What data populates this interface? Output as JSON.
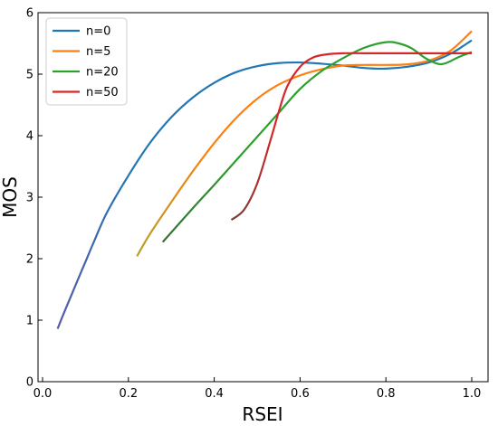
{
  "chart_data": {
    "type": "line",
    "xlabel": "RSEI",
    "ylabel": "MOS",
    "xlim": [
      0.0,
      1.0
    ],
    "ylim": [
      0,
      6
    ],
    "x_ticks": [
      "0.0",
      "0.2",
      "0.4",
      "0.6",
      "0.8",
      "1.0"
    ],
    "y_ticks": [
      "0",
      "1",
      "2",
      "3",
      "4",
      "5",
      "6"
    ],
    "grid": false,
    "legend_position": "top-left",
    "series": [
      {
        "name": "n=0",
        "color": "#1f77b4",
        "start_color": "#5a5aa8",
        "points": [
          [
            0.035,
            0.86
          ],
          [
            0.05,
            1.12
          ],
          [
            0.08,
            1.62
          ],
          [
            0.1,
            1.95
          ],
          [
            0.12,
            2.28
          ],
          [
            0.15,
            2.75
          ],
          [
            0.2,
            3.35
          ],
          [
            0.25,
            3.88
          ],
          [
            0.3,
            4.3
          ],
          [
            0.35,
            4.62
          ],
          [
            0.4,
            4.86
          ],
          [
            0.45,
            5.03
          ],
          [
            0.5,
            5.13
          ],
          [
            0.55,
            5.18
          ],
          [
            0.6,
            5.19
          ],
          [
            0.65,
            5.17
          ],
          [
            0.7,
            5.14
          ],
          [
            0.75,
            5.1
          ],
          [
            0.8,
            5.09
          ],
          [
            0.85,
            5.12
          ],
          [
            0.9,
            5.19
          ],
          [
            0.95,
            5.33
          ],
          [
            1.0,
            5.55
          ]
        ]
      },
      {
        "name": "n=5",
        "color": "#ff7f0e",
        "start_color": "#b3a12a",
        "points": [
          [
            0.22,
            2.04
          ],
          [
            0.25,
            2.4
          ],
          [
            0.3,
            2.92
          ],
          [
            0.35,
            3.42
          ],
          [
            0.4,
            3.88
          ],
          [
            0.45,
            4.28
          ],
          [
            0.5,
            4.6
          ],
          [
            0.55,
            4.83
          ],
          [
            0.6,
            4.98
          ],
          [
            0.65,
            5.08
          ],
          [
            0.7,
            5.14
          ],
          [
            0.75,
            5.15
          ],
          [
            0.8,
            5.15
          ],
          [
            0.85,
            5.16
          ],
          [
            0.9,
            5.22
          ],
          [
            0.95,
            5.38
          ],
          [
            1.0,
            5.7
          ]
        ]
      },
      {
        "name": "n=20",
        "color": "#2ca02c",
        "start_color": "#3a6e3a",
        "points": [
          [
            0.28,
            2.27
          ],
          [
            0.35,
            2.82
          ],
          [
            0.4,
            3.2
          ],
          [
            0.45,
            3.59
          ],
          [
            0.5,
            3.98
          ],
          [
            0.55,
            4.37
          ],
          [
            0.6,
            4.76
          ],
          [
            0.65,
            5.05
          ],
          [
            0.7,
            5.26
          ],
          [
            0.75,
            5.43
          ],
          [
            0.8,
            5.52
          ],
          [
            0.83,
            5.5
          ],
          [
            0.86,
            5.42
          ],
          [
            0.89,
            5.27
          ],
          [
            0.92,
            5.17
          ],
          [
            0.94,
            5.18
          ],
          [
            0.97,
            5.28
          ],
          [
            1.0,
            5.36
          ]
        ]
      },
      {
        "name": "n=50",
        "color": "#d62728",
        "start_color": "#7a3d3d",
        "points": [
          [
            0.44,
            2.63
          ],
          [
            0.47,
            2.8
          ],
          [
            0.5,
            3.22
          ],
          [
            0.53,
            3.9
          ],
          [
            0.55,
            4.38
          ],
          [
            0.57,
            4.8
          ],
          [
            0.6,
            5.12
          ],
          [
            0.63,
            5.27
          ],
          [
            0.66,
            5.32
          ],
          [
            0.7,
            5.34
          ],
          [
            0.75,
            5.34
          ],
          [
            0.8,
            5.34
          ],
          [
            0.85,
            5.34
          ],
          [
            0.9,
            5.34
          ],
          [
            0.95,
            5.34
          ],
          [
            1.0,
            5.34
          ]
        ]
      }
    ]
  }
}
